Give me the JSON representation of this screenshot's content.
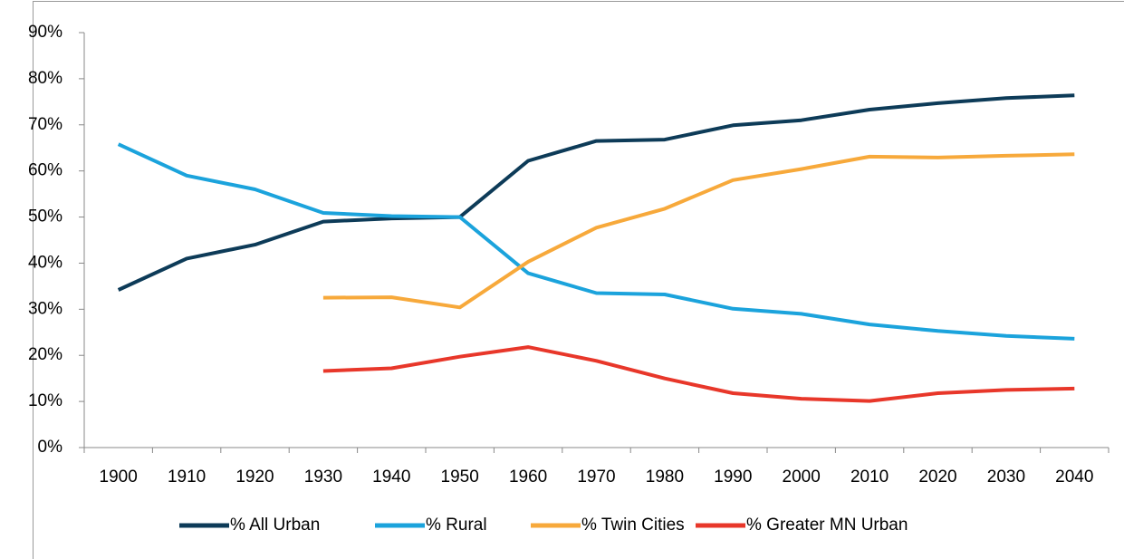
{
  "chart_data": {
    "type": "line",
    "categories": [
      "1900",
      "1910",
      "1920",
      "1930",
      "1940",
      "1950",
      "1960",
      "1970",
      "1980",
      "1990",
      "2000",
      "2010",
      "2020",
      "2030",
      "2040"
    ],
    "series": [
      {
        "name": "% All Urban",
        "color": "#0d3b58",
        "values": [
          34.2,
          41,
          44,
          49,
          49.7,
          50,
          62.2,
          66.5,
          66.8,
          69.9,
          71,
          73.3,
          74.7,
          75.8,
          76.4
        ]
      },
      {
        "name": "% Rural",
        "color": "#1ba3dc",
        "values": [
          65.8,
          59,
          56,
          50.9,
          50.2,
          50,
          37.8,
          33.5,
          33.2,
          30.1,
          29,
          26.7,
          25.3,
          24.2,
          23.6
        ]
      },
      {
        "name": "% Twin Cities",
        "color": "#f7a93b",
        "values": [
          null,
          null,
          null,
          32.5,
          32.6,
          30.4,
          40.3,
          47.7,
          51.8,
          58,
          60.4,
          63.1,
          62.9,
          63.3,
          63.6
        ]
      },
      {
        "name": "% Greater MN Urban",
        "color": "#e8372a",
        "values": [
          null,
          null,
          null,
          16.6,
          17.2,
          19.7,
          21.8,
          18.8,
          15,
          11.8,
          10.6,
          10.1,
          11.8,
          12.5,
          12.8
        ]
      }
    ],
    "ylim": [
      0,
      90
    ],
    "yticks": [
      {
        "value": 0,
        "label": "0%"
      },
      {
        "value": 10,
        "label": "10%"
      },
      {
        "value": 20,
        "label": "20%"
      },
      {
        "value": 30,
        "label": "30%"
      },
      {
        "value": 40,
        "label": "40%"
      },
      {
        "value": 50,
        "label": "50%"
      },
      {
        "value": 60,
        "label": "60%"
      },
      {
        "value": 70,
        "label": "70%"
      },
      {
        "value": 80,
        "label": "80%"
      },
      {
        "value": 90,
        "label": "90%"
      }
    ],
    "grid": false,
    "legend": "bottom"
  }
}
